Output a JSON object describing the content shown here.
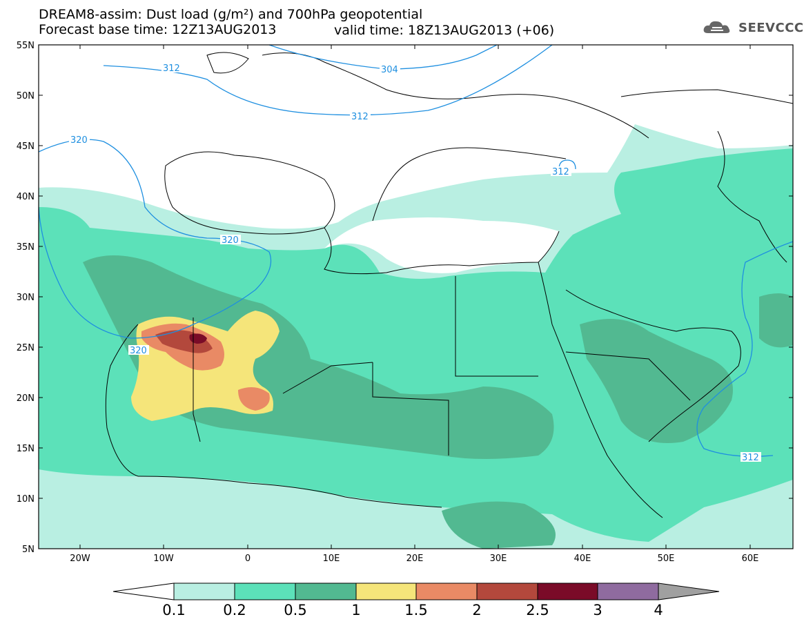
{
  "title": {
    "line1": "DREAM8-assim: Dust load (g/m²) and 700hPa geopotential",
    "base_time": "Forecast base time: 12Z13AUG2013",
    "valid_time": "valid time: 18Z13AUG2013 (+06)"
  },
  "logo": {
    "text": "SEEVCCC",
    "icon": "cloud-icon"
  },
  "axes": {
    "lat_labels": [
      "55N",
      "50N",
      "45N",
      "40N",
      "35N",
      "30N",
      "25N",
      "20N",
      "15N",
      "10N",
      "5N"
    ],
    "lon_labels": [
      "20W",
      "10W",
      "0",
      "10E",
      "20E",
      "30E",
      "40E",
      "50E",
      "60E"
    ]
  },
  "contours": {
    "labels": [
      "312",
      "304",
      "312",
      "320",
      "312",
      "320",
      "320",
      "312"
    ]
  },
  "colorbar": {
    "ticks": [
      "0.1",
      "0.2",
      "0.5",
      "1",
      "1.5",
      "2",
      "2.5",
      "3",
      "4"
    ],
    "colors": [
      "#b9efe2",
      "#5ce1b9",
      "#52b991",
      "#f5e57a",
      "#e98a65",
      "#b3483c",
      "#7a0b28",
      "#8f6b9f",
      "#a0a0a0"
    ]
  },
  "colors": {
    "contour_line": "#1e8fe0",
    "coast": "#000000"
  }
}
